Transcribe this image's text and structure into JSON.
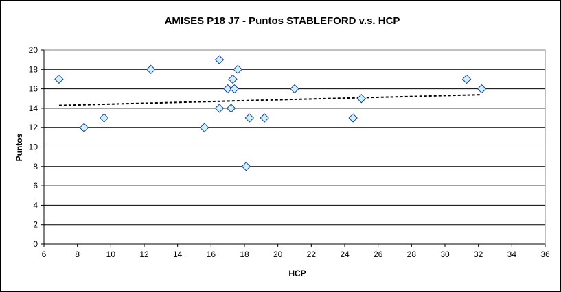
{
  "chart_data": {
    "type": "scatter",
    "title": "AMISES P18 J7 - Puntos STABLEFORD v.s. HCP",
    "xlabel": "HCP",
    "ylabel": "Puntos",
    "xlim": [
      6,
      36
    ],
    "ylim": [
      0,
      20
    ],
    "x_ticks": [
      6,
      8,
      10,
      12,
      14,
      16,
      18,
      20,
      22,
      24,
      26,
      28,
      30,
      32,
      34,
      36
    ],
    "y_ticks": [
      0,
      2,
      4,
      6,
      8,
      10,
      12,
      14,
      16,
      18,
      20
    ],
    "grid": "horizontal",
    "legend": "none",
    "marker": "diamond",
    "marker_fill": "#c9f3f9",
    "marker_stroke": "#1f3a93",
    "plot_bg": "#ffffff",
    "gridline_color": "#000000",
    "trendline": {
      "type": "linear",
      "x": [
        6.9,
        32.2
      ],
      "y": [
        14.3,
        15.4
      ],
      "style": "dashed",
      "color": "#000000"
    },
    "points": [
      {
        "x": 6.9,
        "y": 17
      },
      {
        "x": 8.4,
        "y": 12
      },
      {
        "x": 9.6,
        "y": 13
      },
      {
        "x": 12.4,
        "y": 18
      },
      {
        "x": 15.6,
        "y": 12
      },
      {
        "x": 16.5,
        "y": 19
      },
      {
        "x": 16.5,
        "y": 14
      },
      {
        "x": 17.0,
        "y": 16
      },
      {
        "x": 17.2,
        "y": 14
      },
      {
        "x": 17.3,
        "y": 17
      },
      {
        "x": 17.4,
        "y": 16
      },
      {
        "x": 17.6,
        "y": 18
      },
      {
        "x": 18.1,
        "y": 8
      },
      {
        "x": 18.3,
        "y": 13
      },
      {
        "x": 19.2,
        "y": 13
      },
      {
        "x": 21.0,
        "y": 16
      },
      {
        "x": 24.5,
        "y": 13
      },
      {
        "x": 25.0,
        "y": 15
      },
      {
        "x": 31.3,
        "y": 17
      },
      {
        "x": 32.2,
        "y": 16
      }
    ]
  }
}
